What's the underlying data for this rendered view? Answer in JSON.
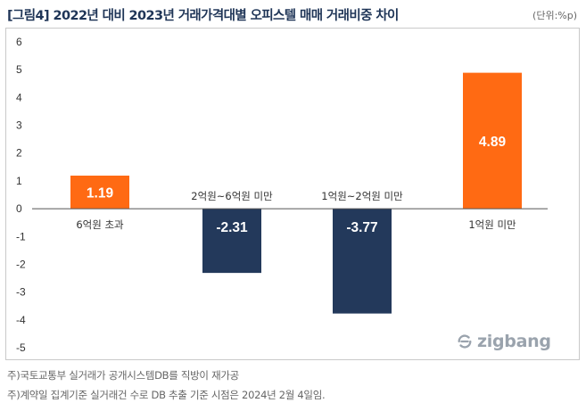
{
  "header": {
    "title": "[그림4] 2022년 대비 2023년 거래가격대별 오피스텔 매매 거래비중 차이",
    "unit": "(단위:%p)"
  },
  "brand": {
    "logo_text": "zigbang"
  },
  "footnotes": [
    "주)국토교통부 실거래가 공개시스템DB를 직방이 재가공",
    "주)계약일 집계기준 실거래건 수로 DB 추출 기준 시점은 2024년 2월 4일임."
  ],
  "colors": {
    "orange": "#ff6a13",
    "navy": "#23395b",
    "axis": "#555555"
  },
  "chart_data": {
    "type": "bar",
    "title": "[그림4] 2022년 대비 2023년 거래가격대별 오피스텔 매매 거래비중 차이",
    "unit": "%p",
    "categories": [
      "6억원 초과",
      "2억원~6억원 미만",
      "1억원~2억원 미만",
      "1억원 미만"
    ],
    "values": [
      1.19,
      -2.31,
      -3.77,
      4.89
    ],
    "data_labels": [
      "1.19",
      "-2.31",
      "-3.77",
      "4.89"
    ],
    "bar_colors": [
      "#ff6a13",
      "#23395b",
      "#23395b",
      "#ff6a13"
    ],
    "ylim": [
      -5,
      6
    ],
    "yticks": [
      -5,
      -4,
      -3,
      -2,
      -1,
      0,
      1,
      2,
      3,
      4,
      5,
      6
    ],
    "xlabel": "",
    "ylabel": "",
    "grid": false
  }
}
